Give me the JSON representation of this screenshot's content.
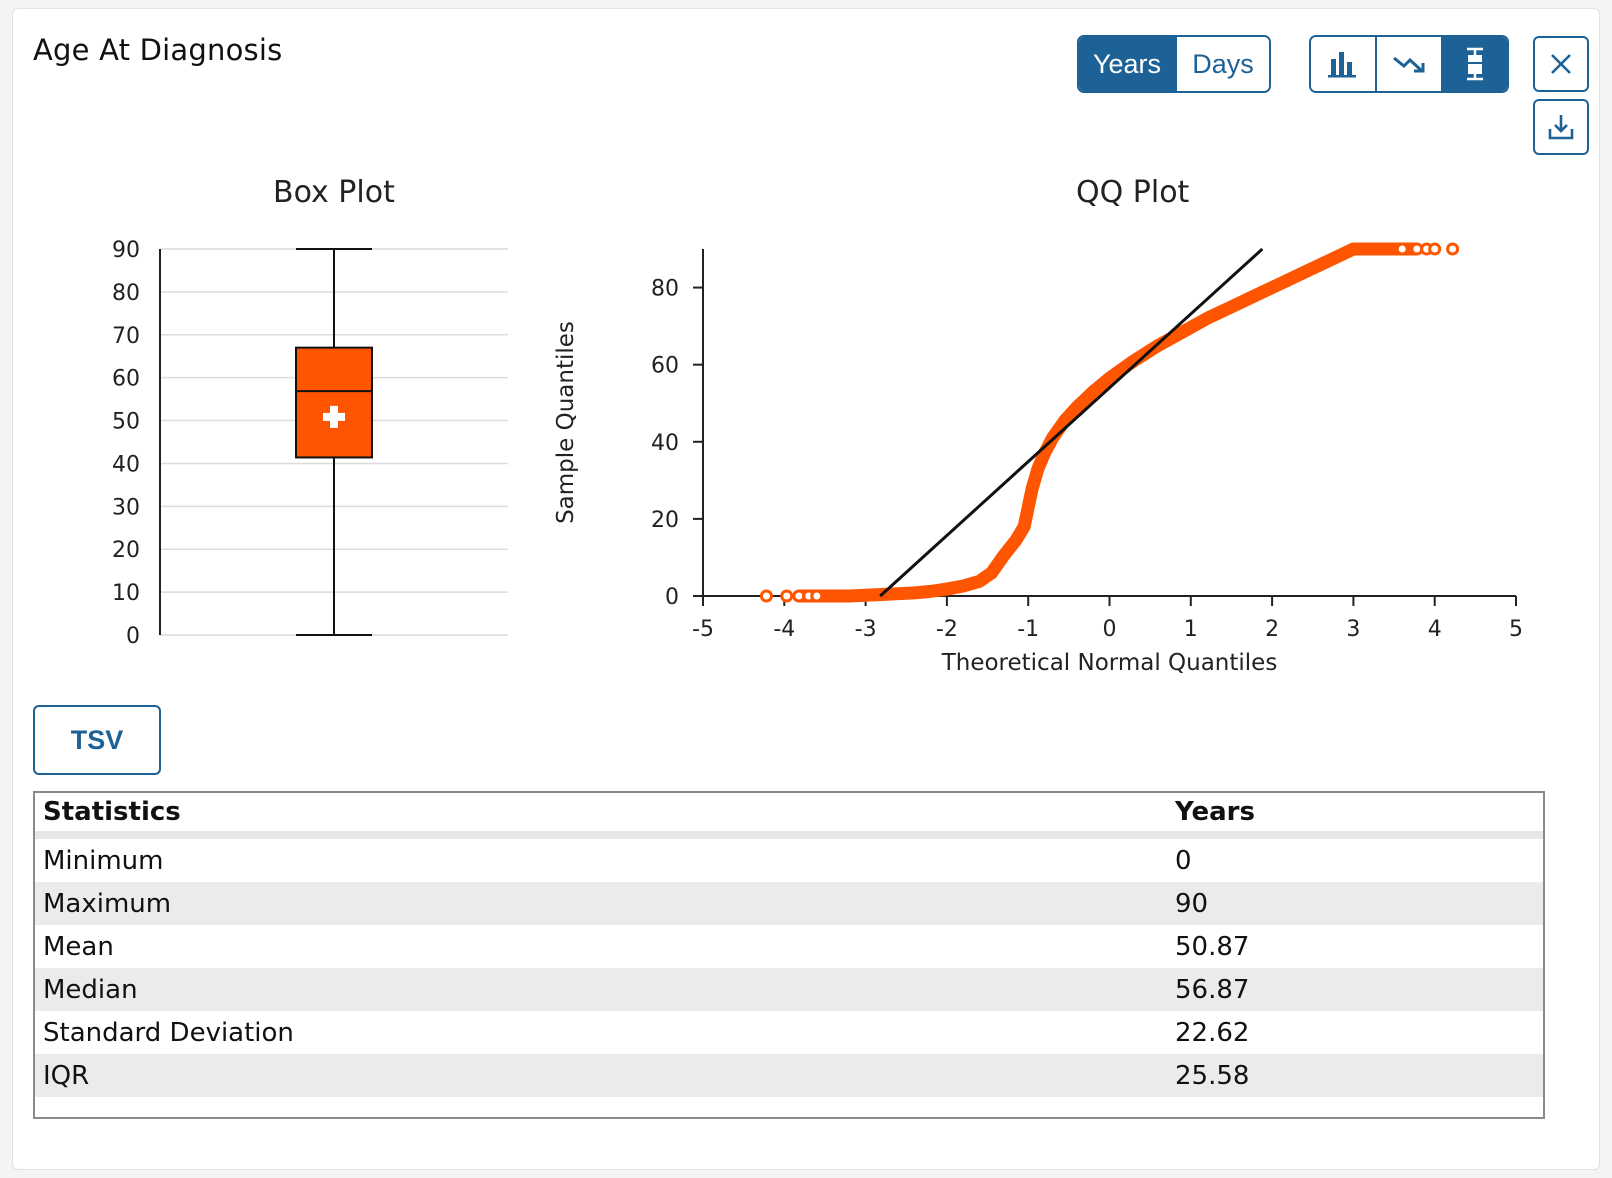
{
  "card": {
    "title": "Age At Diagnosis"
  },
  "unit_toggle": {
    "years_label": "Years",
    "days_label": "Days",
    "selected": "Years"
  },
  "chart_toggle": {
    "icons": [
      "bar-chart-icon",
      "trend-down-icon",
      "box-plot-icon"
    ],
    "selected": "box-plot-icon"
  },
  "actions": {
    "close_icon": "close-icon",
    "download_icon": "download-icon"
  },
  "colors": {
    "accent": "#1d6296",
    "series": "#ff5500",
    "box_fill": "#ff5500"
  },
  "box_plot": {
    "title": "Box Plot"
  },
  "qq_plot": {
    "title": "QQ Plot"
  },
  "tsv_button": {
    "label": "TSV"
  },
  "table": {
    "headers": [
      "Statistics",
      "Years"
    ],
    "rows": [
      {
        "name": "Minimum",
        "value": "0"
      },
      {
        "name": "Maximum",
        "value": "90"
      },
      {
        "name": "Mean",
        "value": "50.87"
      },
      {
        "name": "Median",
        "value": "56.87"
      },
      {
        "name": "Standard Deviation",
        "value": "22.62"
      },
      {
        "name": "IQR",
        "value": "25.58"
      }
    ]
  },
  "chart_data": [
    {
      "type": "box",
      "title": "Box Plot",
      "ylim": [
        0,
        90
      ],
      "yticks": [
        "0",
        "10",
        "20",
        "30",
        "40",
        "50",
        "60",
        "70",
        "80",
        "90"
      ],
      "min": 0,
      "q1": 41.4,
      "median": 56.87,
      "q3": 67.0,
      "max": 90,
      "mean": 50.87,
      "grid": true
    },
    {
      "type": "scatter",
      "title": "QQ Plot",
      "xlabel": "Theoretical Normal Quantiles",
      "ylabel": "Sample Quantiles",
      "xlim": [
        -5,
        5
      ],
      "ylim": [
        0,
        90
      ],
      "xticks": [
        "-5",
        "-4",
        "-3",
        "-2",
        "-1",
        "0",
        "1",
        "2",
        "3",
        "4",
        "5"
      ],
      "yticks": [
        "0",
        "20",
        "40",
        "60",
        "80"
      ],
      "points": [
        [
          -4.22,
          0
        ],
        [
          -3.97,
          0
        ],
        [
          -3.82,
          0
        ],
        [
          -3.7,
          0
        ],
        [
          -3.6,
          0
        ],
        [
          -3.4,
          0
        ],
        [
          -3.2,
          0
        ],
        [
          -3.0,
          0.2
        ],
        [
          -2.8,
          0.4
        ],
        [
          -2.6,
          0.6
        ],
        [
          -2.4,
          0.8
        ],
        [
          -2.2,
          1.2
        ],
        [
          -2.0,
          1.8
        ],
        [
          -1.8,
          2.6
        ],
        [
          -1.6,
          3.8
        ],
        [
          -1.45,
          6.0
        ],
        [
          -1.3,
          10.5
        ],
        [
          -1.15,
          14.5
        ],
        [
          -1.05,
          18.0
        ],
        [
          -1.0,
          23.0
        ],
        [
          -0.95,
          28.0
        ],
        [
          -0.88,
          33.0
        ],
        [
          -0.8,
          37.0
        ],
        [
          -0.7,
          41.0
        ],
        [
          -0.55,
          45.5
        ],
        [
          -0.4,
          49.0
        ],
        [
          -0.2,
          53.0
        ],
        [
          0.0,
          56.5
        ],
        [
          0.3,
          61.0
        ],
        [
          0.6,
          65.0
        ],
        [
          0.9,
          68.5
        ],
        [
          1.2,
          72.0
        ],
        [
          1.5,
          75.0
        ],
        [
          1.8,
          78.0
        ],
        [
          2.1,
          81.0
        ],
        [
          2.4,
          84.0
        ],
        [
          2.7,
          87.0
        ],
        [
          2.9,
          89.0
        ],
        [
          3.0,
          90
        ],
        [
          3.2,
          90
        ],
        [
          3.4,
          90
        ],
        [
          3.6,
          90
        ],
        [
          3.78,
          90
        ],
        [
          3.9,
          90
        ],
        [
          4.0,
          90
        ],
        [
          4.22,
          90
        ]
      ],
      "reference_line": [
        [
          -2.82,
          0
        ],
        [
          1.88,
          90
        ]
      ]
    }
  ]
}
